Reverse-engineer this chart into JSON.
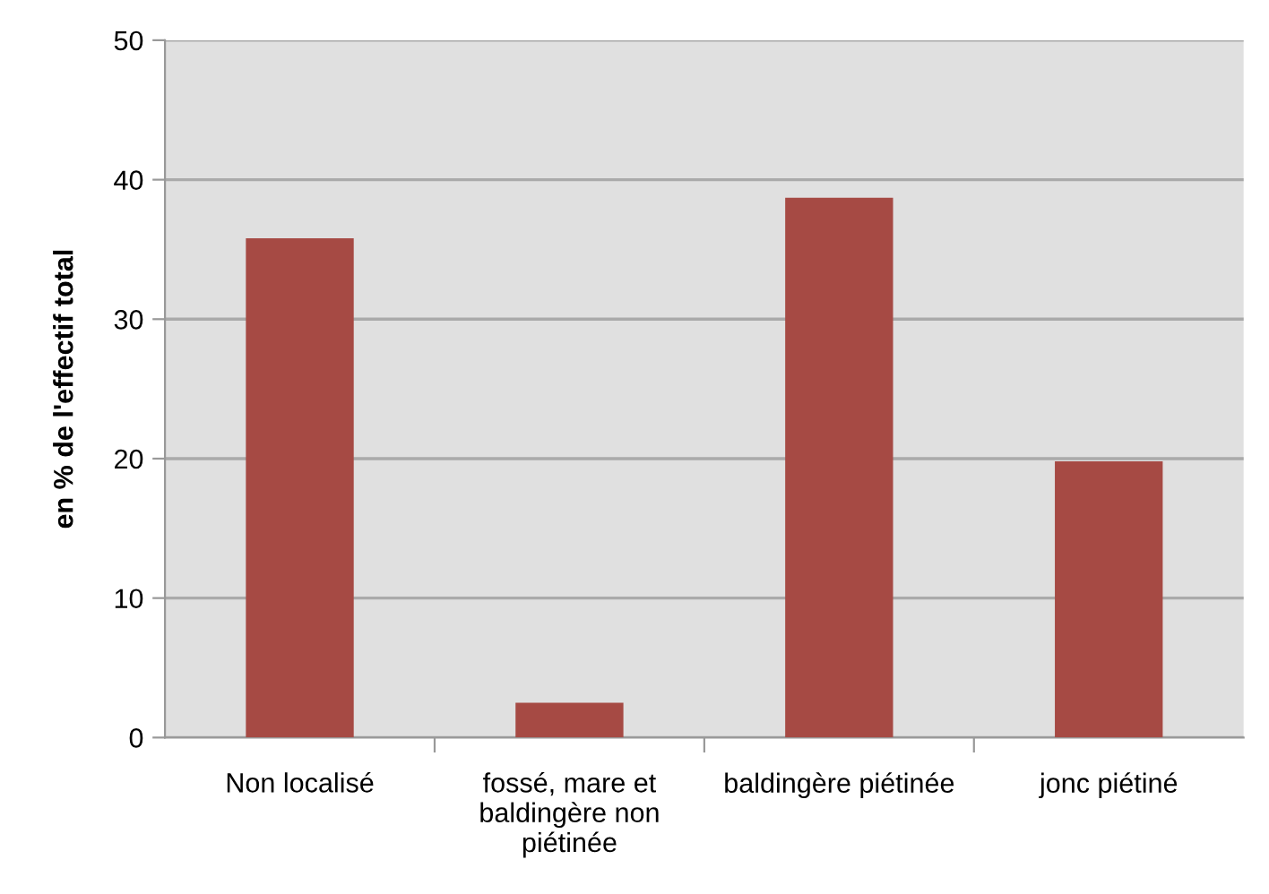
{
  "chart_data": {
    "type": "bar",
    "ylabel": "en % de l'effectif total",
    "categories": [
      "Non localisé",
      "fossé, mare et\nbaldingère non\npiétinée",
      "baldingère piétinée",
      "jonc piétiné"
    ],
    "values": [
      35.8,
      2.5,
      38.7,
      19.8
    ],
    "color": "#a64a44",
    "ylim": [
      0,
      50
    ],
    "yticks": [
      0,
      10,
      20,
      30,
      40,
      50
    ],
    "grid": "y"
  }
}
